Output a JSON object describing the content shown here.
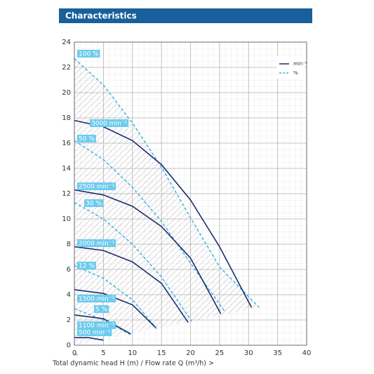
{
  "chart_data": {
    "type": "line",
    "title": "Characteristics",
    "x_label": "Total dynamic head H (m) / Flow rate Q (m³/h) >",
    "y_marker": "^",
    "xlim": [
      0,
      40
    ],
    "xticks": [
      0,
      5,
      10,
      15,
      20,
      25,
      30,
      35,
      40
    ],
    "ylim": [
      0,
      24
    ],
    "yticks": [
      0,
      2,
      4,
      6,
      8,
      10,
      12,
      14,
      16,
      18,
      20,
      22,
      24
    ],
    "grid": true,
    "legend": [
      {
        "label": "min⁻¹",
        "color": "#1c2d6b",
        "dashed": false
      },
      {
        "label": "%",
        "color": "#3cb4e6",
        "dashed": true
      }
    ],
    "series": [
      {
        "name": "100 %",
        "color": "#3cb4e6",
        "dashed": true,
        "x": [
          0,
          5,
          10,
          15,
          20,
          25,
          31.8
        ],
        "values": [
          22.7,
          20.6,
          17.6,
          14.1,
          10.1,
          6.2,
          3.0
        ]
      },
      {
        "name": "3000 min⁻¹",
        "color": "#1c2d6b",
        "dashed": false,
        "x": [
          0,
          5,
          10,
          15,
          20,
          25,
          30.5
        ],
        "values": [
          17.8,
          17.3,
          16.2,
          14.3,
          11.5,
          7.8,
          3.0
        ]
      },
      {
        "name": "50 %",
        "color": "#3cb4e6",
        "dashed": true,
        "x": [
          0,
          5,
          10,
          15,
          20,
          26
        ],
        "values": [
          16.2,
          14.7,
          12.5,
          9.8,
          6.5,
          2.6
        ]
      },
      {
        "name": "2500 min⁻¹",
        "color": "#1c2d6b",
        "dashed": false,
        "x": [
          0,
          5,
          10,
          15,
          20,
          25.2
        ],
        "values": [
          12.3,
          11.9,
          11.0,
          9.4,
          6.9,
          2.5
        ]
      },
      {
        "name": "30 %",
        "color": "#3cb4e6",
        "dashed": true,
        "x": [
          0,
          5,
          10,
          15,
          20.2
        ],
        "values": [
          11.3,
          10.0,
          8.0,
          5.4,
          1.9
        ]
      },
      {
        "name": "2000 min⁻¹",
        "color": "#1c2d6b",
        "dashed": false,
        "x": [
          0,
          5,
          10,
          15,
          19.6
        ],
        "values": [
          7.8,
          7.5,
          6.6,
          4.9,
          1.8
        ]
      },
      {
        "name": "12 %",
        "color": "#3cb4e6",
        "dashed": true,
        "x": [
          0,
          5,
          10,
          14.2
        ],
        "values": [
          6.3,
          5.3,
          3.6,
          1.3
        ]
      },
      {
        "name": "1500 min⁻¹",
        "color": "#1c2d6b",
        "dashed": false,
        "x": [
          0,
          5,
          10,
          14
        ],
        "values": [
          4.4,
          4.1,
          3.2,
          1.4
        ]
      },
      {
        "name": "5 %",
        "color": "#3cb4e6",
        "dashed": true,
        "x": [
          0,
          5,
          9.8
        ],
        "values": [
          2.9,
          2.0,
          0.8
        ]
      },
      {
        "name": "1100 min⁻¹",
        "color": "#1c2d6b",
        "dashed": false,
        "x": [
          0,
          5,
          9.7
        ],
        "values": [
          2.4,
          2.1,
          0.9
        ]
      },
      {
        "name": "500 min⁻¹",
        "color": "#1c2d6b",
        "dashed": false,
        "x": [
          0,
          2.5,
          5
        ],
        "values": [
          0.6,
          0.6,
          0.4
        ]
      }
    ]
  }
}
